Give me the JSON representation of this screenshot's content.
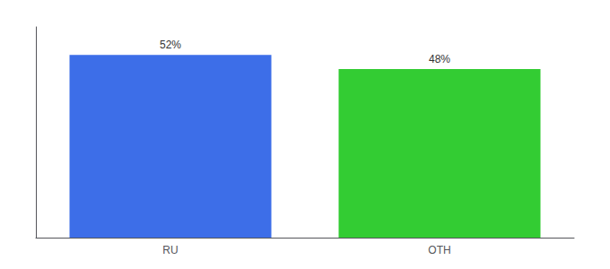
{
  "chart_data": {
    "type": "bar",
    "categories": [
      "RU",
      "OTH"
    ],
    "values": [
      52,
      48
    ],
    "colors": [
      "#3d6ee8",
      "#33cc33"
    ],
    "value_labels": [
      "52%",
      "48%"
    ],
    "data_labels": true,
    "ylim": [
      0,
      60
    ],
    "yticks": [],
    "tick_labels": "x",
    "grid": false
  }
}
